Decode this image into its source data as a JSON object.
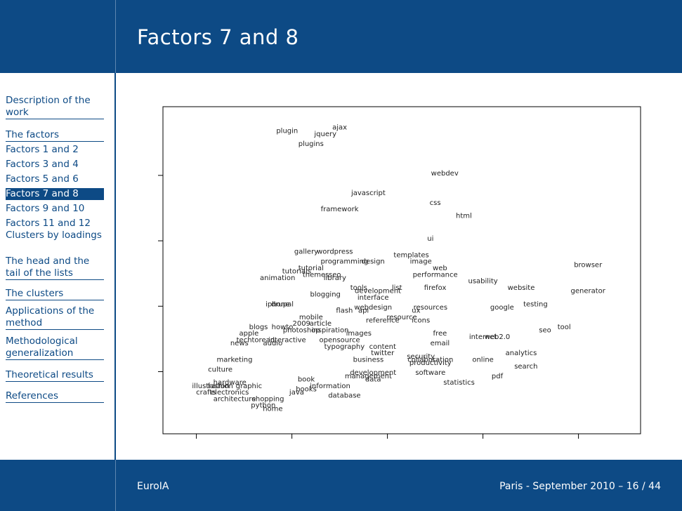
{
  "slide": {
    "title": "Factors 7 and 8",
    "footer_left": "EuroIA",
    "footer_right": "Paris - September 2010 – 16 / 44"
  },
  "sidebar": {
    "items": [
      {
        "label": "Description of the work",
        "section": true,
        "active": false
      },
      {
        "label": "The factors",
        "section": true,
        "active": false
      },
      {
        "label": "Factors 1 and 2",
        "section": false,
        "active": false
      },
      {
        "label": "Factors 3 and 4",
        "section": false,
        "active": false
      },
      {
        "label": "Factors 5 and 6",
        "section": false,
        "active": false
      },
      {
        "label": "Factors 7 and 8",
        "section": false,
        "active": true
      },
      {
        "label": "Factors 9 and 10",
        "section": false,
        "active": false
      },
      {
        "label": "Factors 11 and 12",
        "section": false,
        "active": false
      },
      {
        "label": "Clusters by loadings",
        "section": false,
        "active": false
      },
      {
        "label": "The head and the tail of the lists",
        "section": true,
        "active": false
      },
      {
        "label": "The clusters",
        "section": true,
        "active": false
      },
      {
        "label": "Applications of the method",
        "section": true,
        "active": false
      },
      {
        "label": "Methodological generalization",
        "section": true,
        "active": false
      },
      {
        "label": "Theoretical results",
        "section": true,
        "active": false
      },
      {
        "label": "References",
        "section": true,
        "active": false
      }
    ]
  },
  "chart_data": {
    "type": "scatter",
    "title": "",
    "xlabel": "",
    "ylabel": "",
    "xlim": [
      0,
      100
    ],
    "ylim": [
      0,
      100
    ],
    "x_ticks": [
      7,
      27,
      47,
      67,
      87
    ],
    "y_ticks": [
      19,
      39,
      59,
      79
    ],
    "points": [
      {
        "label": "plugin",
        "x": 26,
        "y": 92
      },
      {
        "label": "ajax",
        "x": 37,
        "y": 93
      },
      {
        "label": "jquery",
        "x": 34,
        "y": 91
      },
      {
        "label": "plugins",
        "x": 31,
        "y": 88
      },
      {
        "label": "webdev",
        "x": 59,
        "y": 79
      },
      {
        "label": "javascript",
        "x": 43,
        "y": 73
      },
      {
        "label": "css",
        "x": 57,
        "y": 70
      },
      {
        "label": "framework",
        "x": 37,
        "y": 68
      },
      {
        "label": "html",
        "x": 63,
        "y": 66
      },
      {
        "label": "ui",
        "x": 56,
        "y": 59
      },
      {
        "label": "gallery",
        "x": 30,
        "y": 55
      },
      {
        "label": "wordpress",
        "x": 36,
        "y": 55
      },
      {
        "label": "templates",
        "x": 52,
        "y": 54
      },
      {
        "label": "programming",
        "x": 38,
        "y": 52
      },
      {
        "label": "design",
        "x": 44,
        "y": 52
      },
      {
        "label": "image",
        "x": 54,
        "y": 52
      },
      {
        "label": "browser",
        "x": 89,
        "y": 51
      },
      {
        "label": "tutorial",
        "x": 31,
        "y": 50
      },
      {
        "label": "web",
        "x": 58,
        "y": 50
      },
      {
        "label": "tutorials",
        "x": 28,
        "y": 49
      },
      {
        "label": "themes",
        "x": 32,
        "y": 48
      },
      {
        "label": "seo",
        "x": 36,
        "y": 48
      },
      {
        "label": "performance",
        "x": 57,
        "y": 48
      },
      {
        "label": "animation",
        "x": 24,
        "y": 47
      },
      {
        "label": "library",
        "x": 36,
        "y": 47
      },
      {
        "label": "usability",
        "x": 67,
        "y": 46
      },
      {
        "label": "tools",
        "x": 41,
        "y": 44
      },
      {
        "label": "list",
        "x": 49,
        "y": 44
      },
      {
        "label": "development",
        "x": 45,
        "y": 43
      },
      {
        "label": "firefox",
        "x": 57,
        "y": 44
      },
      {
        "label": "website",
        "x": 75,
        "y": 44
      },
      {
        "label": "generator",
        "x": 89,
        "y": 43
      },
      {
        "label": "blogging",
        "x": 34,
        "y": 42
      },
      {
        "label": "interface",
        "x": 44,
        "y": 41
      },
      {
        "label": "iphone",
        "x": 24,
        "y": 39
      },
      {
        "label": "drupal",
        "x": 25,
        "y": 39
      },
      {
        "label": "testing",
        "x": 78,
        "y": 39
      },
      {
        "label": "webdesign",
        "x": 44,
        "y": 38
      },
      {
        "label": "resources",
        "x": 56,
        "y": 38
      },
      {
        "label": "google",
        "x": 71,
        "y": 38
      },
      {
        "label": "flash",
        "x": 38,
        "y": 37
      },
      {
        "label": "api",
        "x": 42,
        "y": 37
      },
      {
        "label": "ux",
        "x": 53,
        "y": 37
      },
      {
        "label": "mobile",
        "x": 31,
        "y": 35
      },
      {
        "label": "reference",
        "x": 46,
        "y": 34
      },
      {
        "label": "resource",
        "x": 50,
        "y": 35
      },
      {
        "label": "icons",
        "x": 54,
        "y": 34
      },
      {
        "label": "2009",
        "x": 29,
        "y": 33
      },
      {
        "label": "article",
        "x": 33,
        "y": 33
      },
      {
        "label": "blogs",
        "x": 20,
        "y": 32
      },
      {
        "label": "howto",
        "x": 25,
        "y": 32
      },
      {
        "label": "photoshop",
        "x": 29,
        "y": 31
      },
      {
        "label": "inspiration",
        "x": 35,
        "y": 31
      },
      {
        "label": "seo",
        "x": 80,
        "y": 31
      },
      {
        "label": "tool",
        "x": 84,
        "y": 32
      },
      {
        "label": "apple",
        "x": 18,
        "y": 30
      },
      {
        "label": "images",
        "x": 41,
        "y": 30
      },
      {
        "label": "free",
        "x": 58,
        "y": 30
      },
      {
        "label": "internet",
        "x": 67,
        "y": 29
      },
      {
        "label": "web2.0",
        "x": 70,
        "y": 29
      },
      {
        "label": "tech",
        "x": 17,
        "y": 28
      },
      {
        "label": "toread",
        "x": 21,
        "y": 28
      },
      {
        "label": "interactive",
        "x": 26,
        "y": 28
      },
      {
        "label": "opensource",
        "x": 37,
        "y": 28
      },
      {
        "label": "email",
        "x": 58,
        "y": 27
      },
      {
        "label": "news",
        "x": 16,
        "y": 27
      },
      {
        "label": "audio",
        "x": 23,
        "y": 27
      },
      {
        "label": "typography",
        "x": 38,
        "y": 26
      },
      {
        "label": "content",
        "x": 46,
        "y": 26
      },
      {
        "label": "analytics",
        "x": 75,
        "y": 24
      },
      {
        "label": "twitter",
        "x": 46,
        "y": 24
      },
      {
        "label": "security",
        "x": 54,
        "y": 23
      },
      {
        "label": "business",
        "x": 43,
        "y": 22
      },
      {
        "label": "marketing",
        "x": 15,
        "y": 22
      },
      {
        "label": "collaboration",
        "x": 56,
        "y": 22
      },
      {
        "label": "online",
        "x": 67,
        "y": 22
      },
      {
        "label": "productivity",
        "x": 56,
        "y": 21
      },
      {
        "label": "search",
        "x": 76,
        "y": 20
      },
      {
        "label": "culture",
        "x": 12,
        "y": 19
      },
      {
        "label": "software",
        "x": 56,
        "y": 18
      },
      {
        "label": "pdf",
        "x": 70,
        "y": 17
      },
      {
        "label": "development",
        "x": 44,
        "y": 18
      },
      {
        "label": "management",
        "x": 43,
        "y": 17
      },
      {
        "label": "data",
        "x": 44,
        "y": 16
      },
      {
        "label": "book",
        "x": 30,
        "y": 16
      },
      {
        "label": "statistics",
        "x": 62,
        "y": 15
      },
      {
        "label": "hardware",
        "x": 14,
        "y": 15
      },
      {
        "label": "illustration",
        "x": 10,
        "y": 14
      },
      {
        "label": "fashion",
        "x": 12,
        "y": 14
      },
      {
        "label": "graphic",
        "x": 18,
        "y": 14
      },
      {
        "label": "books",
        "x": 30,
        "y": 13
      },
      {
        "label": "information",
        "x": 35,
        "y": 14
      },
      {
        "label": "crafts",
        "x": 9,
        "y": 12
      },
      {
        "label": "electronics",
        "x": 14,
        "y": 12
      },
      {
        "label": "java",
        "x": 28,
        "y": 12
      },
      {
        "label": "database",
        "x": 38,
        "y": 11
      },
      {
        "label": "architecture",
        "x": 15,
        "y": 10
      },
      {
        "label": "shopping",
        "x": 22,
        "y": 10
      },
      {
        "label": "python",
        "x": 21,
        "y": 8
      },
      {
        "label": "home",
        "x": 23,
        "y": 7
      }
    ]
  }
}
